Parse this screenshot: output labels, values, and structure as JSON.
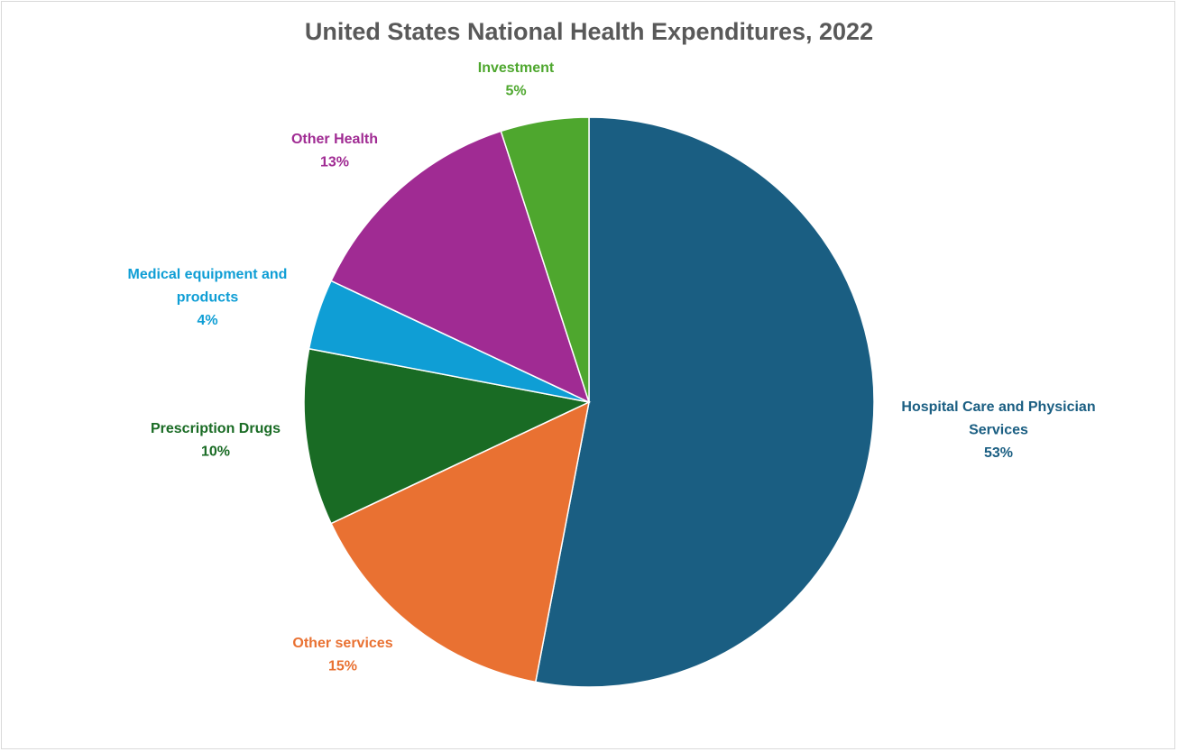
{
  "chart_data": {
    "type": "pie",
    "title": "United States National Health Expenditures, 2022",
    "slices": [
      {
        "label": "Hospital Care and Physician Services",
        "label_lines": [
          "Hospital Care and Physician",
          "Services"
        ],
        "value": 53,
        "percent_label": "53%",
        "color": "#1a5e82",
        "label_color": "#1a5e82"
      },
      {
        "label": "Other services",
        "label_lines": [
          "Other services"
        ],
        "value": 15,
        "percent_label": "15%",
        "color": "#e97132",
        "label_color": "#e97132"
      },
      {
        "label": "Prescription Drugs",
        "label_lines": [
          "Prescription Drugs"
        ],
        "value": 10,
        "percent_label": "10%",
        "color": "#196b24",
        "label_color": "#196b24"
      },
      {
        "label": "Medical equipment and products",
        "label_lines": [
          "Medical equipment and",
          "products"
        ],
        "value": 4,
        "percent_label": "4%",
        "color": "#0f9ed5",
        "label_color": "#0f9ed5"
      },
      {
        "label": "Other Health",
        "label_lines": [
          "Other Health"
        ],
        "value": 13,
        "percent_label": "13%",
        "color": "#a02b93",
        "label_color": "#a02b93"
      },
      {
        "label": "Investment",
        "label_lines": [
          "Investment"
        ],
        "value": 5,
        "percent_label": "5%",
        "color": "#4ea72e",
        "label_color": "#4ea72e"
      }
    ],
    "legend": "none",
    "data_labels": "outside"
  }
}
